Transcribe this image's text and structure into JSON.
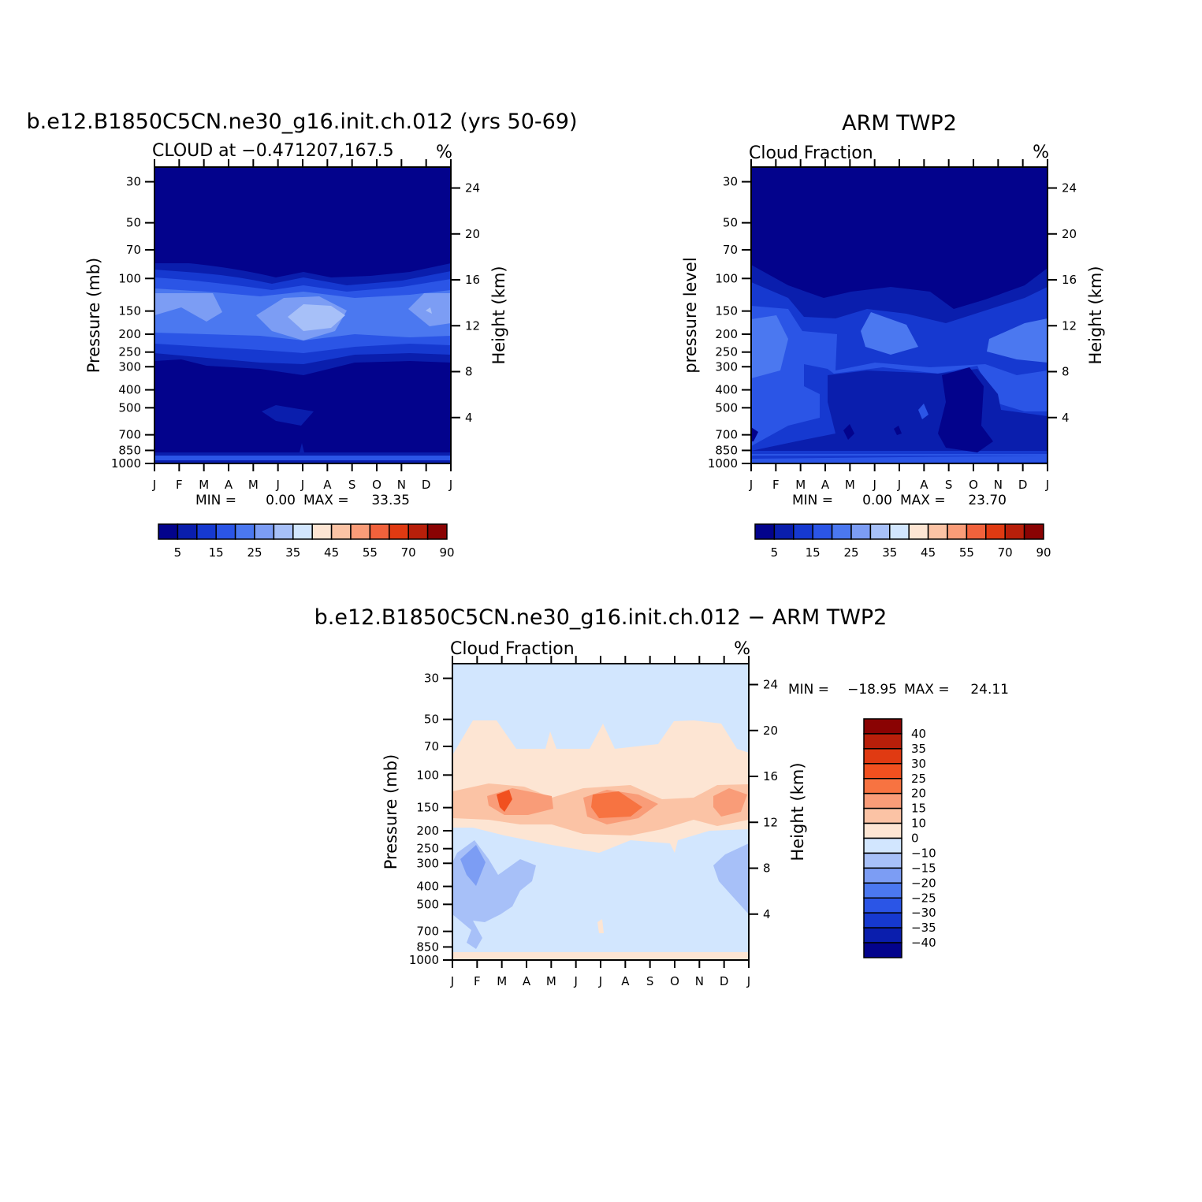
{
  "colors": {
    "seq": [
      "#03038c",
      "#0a1ead",
      "#1639d0",
      "#2b55e6",
      "#4b78f0",
      "#7c9df4",
      "#a7c0f8",
      "#d2e6fe",
      "#fde5d3",
      "#fbc3a5",
      "#f99c78",
      "#f1623c",
      "#e03a12",
      "#b81f0a",
      "#8a0303"
    ],
    "div": [
      "#03038c",
      "#0a1ead",
      "#1639d0",
      "#2b55e6",
      "#4b78f0",
      "#7c9df4",
      "#a7c0f8",
      "#d2e6fe",
      "#fde5d3",
      "#fbc3a5",
      "#f99c78",
      "#f77341",
      "#f1501f",
      "#e03a12",
      "#b81f0a",
      "#8a0303"
    ]
  },
  "chart_data": [
    {
      "type": "heatmap",
      "title": "b.e12.B1850C5CN.ne30_g16.init.ch.012 (yrs 50-69)",
      "subtitle_left": "CLOUD at −0.471207,167.5",
      "subtitle_right": "%",
      "xlabel": "",
      "ylabel": "Pressure (mb)",
      "y2label": "Height (km)",
      "x": [
        "J",
        "F",
        "M",
        "A",
        "M",
        "J",
        "J",
        "A",
        "S",
        "O",
        "N",
        "D",
        "J"
      ],
      "y_ticks": [
        "30",
        "50",
        "70",
        "100",
        "150",
        "200",
        "250",
        "300",
        "400",
        "500",
        "700",
        "850",
        "1000"
      ],
      "y2_ticks": [
        "24",
        "20",
        "16",
        "12",
        "8",
        "4"
      ],
      "y_scale": "log",
      "ylim": [
        1000,
        25
      ],
      "stats": {
        "min_label": "MIN =",
        "min": "0.00",
        "max_label": "MAX =",
        "max": "33.35"
      },
      "colorbar_labels": [
        "5",
        "15",
        "25",
        "35",
        "45",
        "55",
        "70",
        "90"
      ]
    },
    {
      "type": "heatmap",
      "title": "ARM TWP2",
      "subtitle_left": "Cloud Fraction",
      "subtitle_right": "%",
      "xlabel": "",
      "ylabel": "pressure level",
      "y2label": "Height (km)",
      "x": [
        "J",
        "F",
        "M",
        "A",
        "M",
        "J",
        "J",
        "A",
        "S",
        "O",
        "N",
        "D",
        "J"
      ],
      "y_ticks": [
        "30",
        "50",
        "70",
        "100",
        "150",
        "200",
        "250",
        "300",
        "400",
        "500",
        "700",
        "850",
        "1000"
      ],
      "y2_ticks": [
        "24",
        "20",
        "16",
        "12",
        "8",
        "4"
      ],
      "y_scale": "log",
      "ylim": [
        1000,
        25
      ],
      "stats": {
        "min_label": "MIN =",
        "min": "0.00",
        "max_label": "MAX =",
        "max": "23.70"
      },
      "colorbar_labels": [
        "5",
        "15",
        "25",
        "35",
        "45",
        "55",
        "70",
        "90"
      ]
    },
    {
      "type": "heatmap",
      "title": "b.e12.B1850C5CN.ne30_g16.init.ch.012 − ARM TWP2",
      "subtitle_left": "Cloud Fraction",
      "subtitle_right": "%",
      "xlabel": "",
      "ylabel": "Pressure (mb)",
      "y2label": "Height (km)",
      "x": [
        "J",
        "F",
        "M",
        "A",
        "M",
        "J",
        "J",
        "A",
        "S",
        "O",
        "N",
        "D",
        "J"
      ],
      "y_ticks": [
        "30",
        "50",
        "70",
        "100",
        "150",
        "200",
        "250",
        "300",
        "400",
        "500",
        "700",
        "850",
        "1000"
      ],
      "y2_ticks": [
        "24",
        "20",
        "16",
        "12",
        "8",
        "4"
      ],
      "y_scale": "log",
      "ylim": [
        1000,
        25
      ],
      "stats": {
        "min_label": "MIN =",
        "min": "−18.95",
        "max_label": "MAX =",
        "max": "24.11"
      },
      "colorbar_labels": [
        "40",
        "35",
        "30",
        "25",
        "20",
        "15",
        "10",
        "0",
        "−10",
        "−15",
        "−20",
        "−25",
        "−30",
        "−35",
        "−40"
      ]
    }
  ]
}
